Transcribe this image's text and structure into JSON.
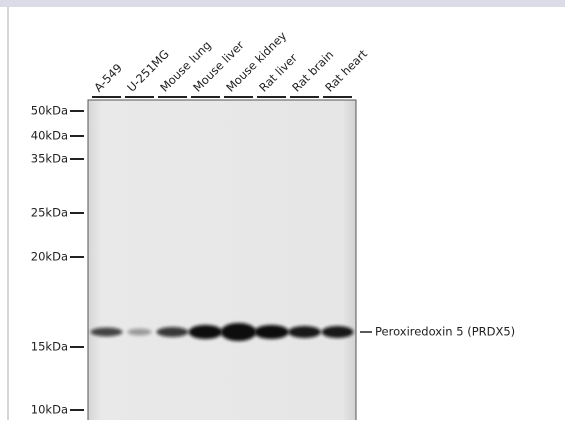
{
  "lanes": [
    "A-549",
    "U-251MG",
    "Mouse lung",
    "Mouse liver",
    "Mouse kidney",
    "Rat liver",
    "Rat brain",
    "Rat heart"
  ],
  "markers": [
    "50kDa",
    "40kDa",
    "35kDa",
    "25kDa",
    "20kDa",
    "15kDa",
    "10kDa"
  ],
  "band_label": "Peroxiredoxin 5 (PRDX5)"
}
